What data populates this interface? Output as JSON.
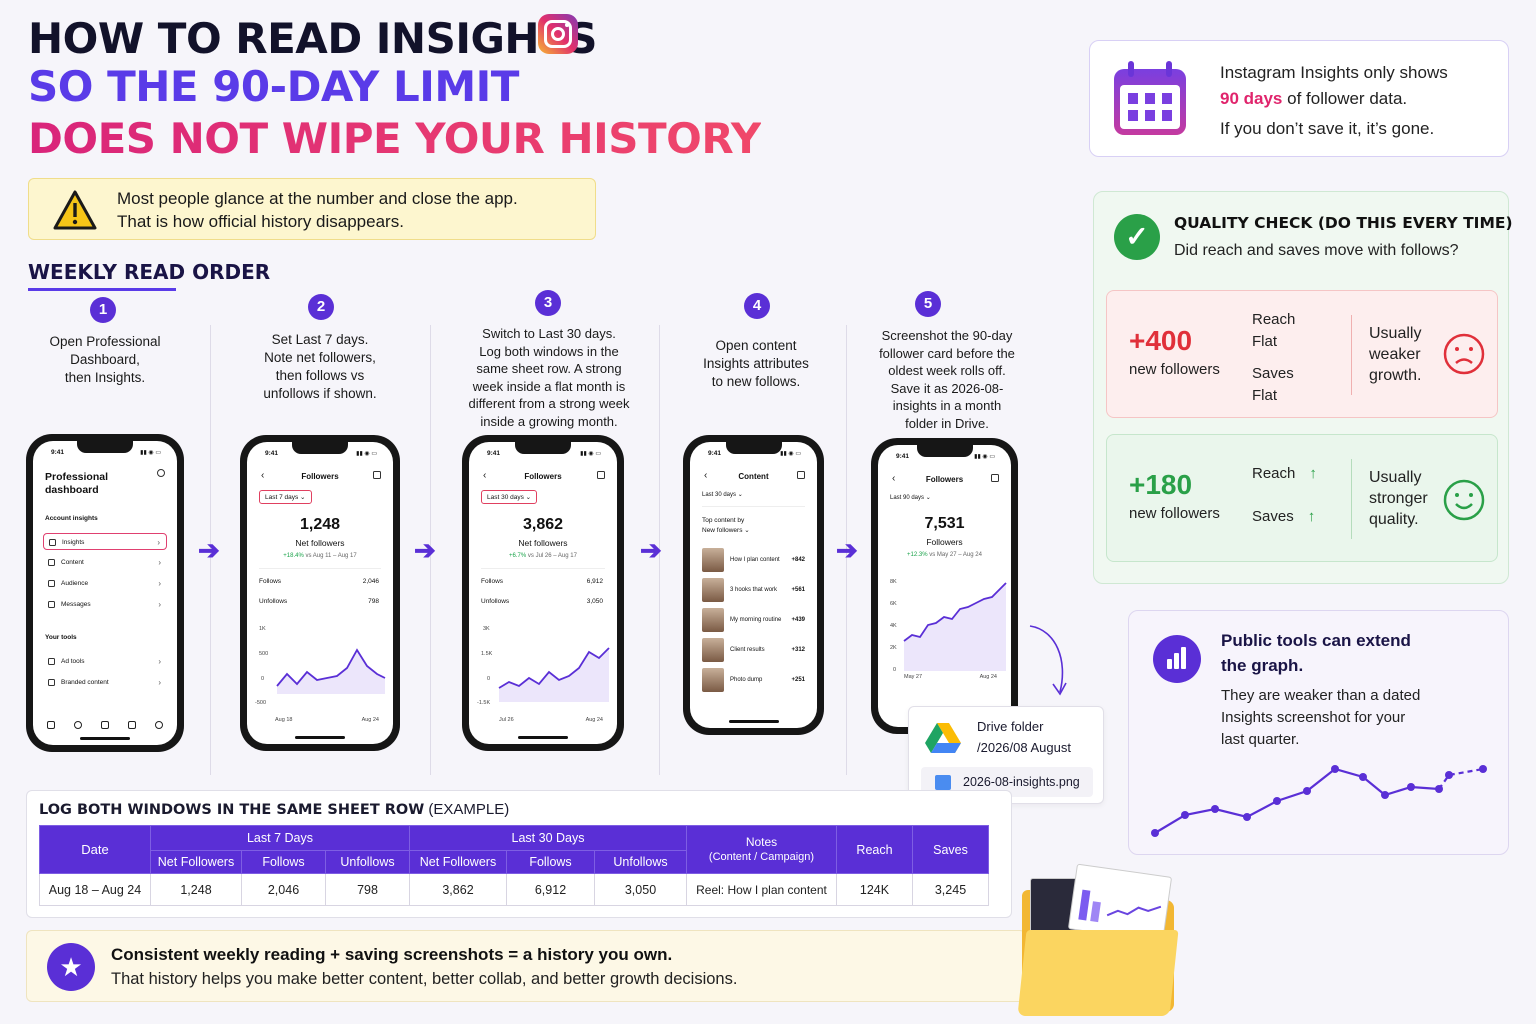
{
  "title": {
    "line1": "HOW TO READ INSIGHTS",
    "line2": "SO THE 90-DAY LIMIT",
    "line3": "DOES NOT WIPE YOUR HISTORY"
  },
  "warning": {
    "line1": "Most people glance at the number and close the app.",
    "line2": "That is how official history disappears."
  },
  "section_title": "WEEKLY READ ORDER",
  "steps": [
    {
      "num": "1",
      "text": "Open Professional\nDashboard,\nthen Insights."
    },
    {
      "num": "2",
      "text": "Set Last 7 days.\nNote net followers,\nthen follows vs\nunfollows if shown."
    },
    {
      "num": "3",
      "text": "Switch to Last 30 days.\nLog both windows in the\nsame sheet row. A strong\nweek inside a flat month is\ndifferent from a strong week\ninside a growing month."
    },
    {
      "num": "4",
      "text": "Open content\nInsights attributes\nto new follows."
    },
    {
      "num": "5",
      "text": "Screenshot the 90-day\nfollower card before the\noldest week rolls off.\nSave it as 2026-08-\ninsights in a month\nfolder in Drive."
    }
  ],
  "phone1": {
    "time": "9:41",
    "title": "Professional\ndashboard",
    "section1": "Account insights",
    "items": [
      "Insights",
      "Content",
      "Audience",
      "Messages"
    ],
    "section2": "Your tools",
    "tools": [
      "Ad tools",
      "Branded content"
    ]
  },
  "phone2": {
    "time": "9:41",
    "header": "Followers",
    "pill": "Last 7 days",
    "big": "1,248",
    "label": "Net followers",
    "change_pct": "+18.4%",
    "change_rest": " vs Aug 11 – Aug 17",
    "follows_label": "Follows",
    "follows": "2,046",
    "unfollows_label": "Unfollows",
    "unfollows": "798",
    "yticks": [
      "1K",
      "500",
      "0",
      "-500"
    ],
    "xstart": "Aug 18",
    "xend": "Aug 24"
  },
  "phone3": {
    "time": "9:41",
    "header": "Followers",
    "pill": "Last 30 days",
    "big": "3,862",
    "label": "Net followers",
    "change_pct": "+6.7%",
    "change_rest": " vs Jul 26 – Aug 17",
    "follows_label": "Follows",
    "follows": "6,912",
    "unfollows_label": "Unfollows",
    "unfollows": "3,050",
    "yticks": [
      "3K",
      "1.5K",
      "0",
      "-1.5K"
    ],
    "xstart": "Jul 26",
    "xend": "Aug 24"
  },
  "phone4": {
    "time": "9:41",
    "header": "Content",
    "pill": "Last 30 days",
    "sub1": "Top content by",
    "sub2": "New followers",
    "rows": [
      {
        "title": "How I plan content",
        "value": "+842"
      },
      {
        "title": "3 hooks that work",
        "value": "+561"
      },
      {
        "title": "My morning routine",
        "value": "+439"
      },
      {
        "title": "Client results",
        "value": "+312"
      },
      {
        "title": "Photo dump",
        "value": "+251"
      }
    ]
  },
  "phone5": {
    "time": "9:41",
    "header": "Followers",
    "pill": "Last 90 days",
    "big": "7,531",
    "label": "Followers",
    "change_pct": "+12.3%",
    "change_rest": " vs May 27 – Aug 24",
    "yticks": [
      "8K",
      "6K",
      "4K",
      "2K",
      "0"
    ],
    "xstart": "May 27",
    "xend": "Aug 24"
  },
  "drive": {
    "line1": "Drive folder",
    "line2": "/2026/08 August",
    "file": "2026-08-insights.png"
  },
  "info_card": {
    "line1": "Instagram Insights only shows",
    "highlight": "90 days",
    "line2_rest": " of follower data.",
    "line3": "If you don’t save it, it’s gone."
  },
  "quality": {
    "title": "QUALITY CHECK (DO THIS EVERY TIME)",
    "subtitle": "Did reach and saves move with follows?",
    "bad": {
      "value": "+400",
      "label": "new followers",
      "reach": "Reach",
      "reach_state": "Flat",
      "saves": "Saves",
      "saves_state": "Flat",
      "verdict": "Usually\nweaker\ngrowth."
    },
    "good": {
      "value": "+180",
      "label": "new followers",
      "reach": "Reach",
      "saves": "Saves",
      "verdict": "Usually\nstronger\nquality."
    }
  },
  "public": {
    "head1": "Public tools can extend",
    "head2": "the graph.",
    "body1": "They are weaker than a dated",
    "body2": "Insights screenshot for your",
    "body3": "last quarter."
  },
  "table": {
    "title_bold": "LOG BOTH WINDOWS IN THE SAME SHEET ROW",
    "title_rest": " (EXAMPLE)",
    "h_date": "Date",
    "h_7": "Last 7 Days",
    "h_30": "Last 30 Days",
    "h_notes": "Notes",
    "h_notes_sub": "(Content / Campaign)",
    "h_reach": "Reach",
    "h_saves": "Saves",
    "sub": [
      "Net Followers",
      "Follows",
      "Unfollows",
      "Net Followers",
      "Follows",
      "Unfollows"
    ],
    "row": [
      "Aug 18 – Aug 24",
      "1,248",
      "2,046",
      "798",
      "3,862",
      "6,912",
      "3,050",
      "Reel: How I plan content",
      "124K",
      "3,245"
    ]
  },
  "footer": {
    "line1": "Consistent weekly reading + saving screenshots = a history you own.",
    "line2": "That history helps you make better content, better collab, and better growth decisions."
  },
  "colors": {
    "accent": "#5a2fd6",
    "pink": "#e0246c",
    "green": "#2aa048",
    "red": "#e0303a"
  }
}
